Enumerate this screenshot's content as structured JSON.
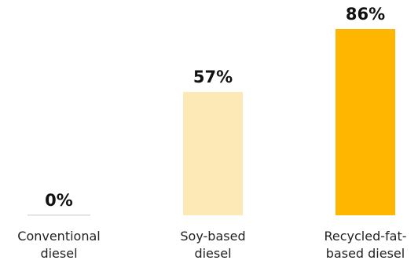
{
  "chart_data": {
    "type": "bar",
    "categories": [
      [
        "Conventional",
        "diesel"
      ],
      [
        "Soy-based",
        "diesel"
      ],
      [
        "Recycled-fat-",
        "based diesel"
      ]
    ],
    "values": [
      0,
      57,
      86
    ],
    "value_labels": [
      "0%",
      "57%",
      "86%"
    ],
    "colors": [
      "#d9d9d9",
      "#fde9b6",
      "#ffb600"
    ],
    "ylim": [
      0,
      100
    ],
    "title": "",
    "xlabel": "",
    "ylabel": "",
    "grid": false,
    "legend": "none"
  }
}
